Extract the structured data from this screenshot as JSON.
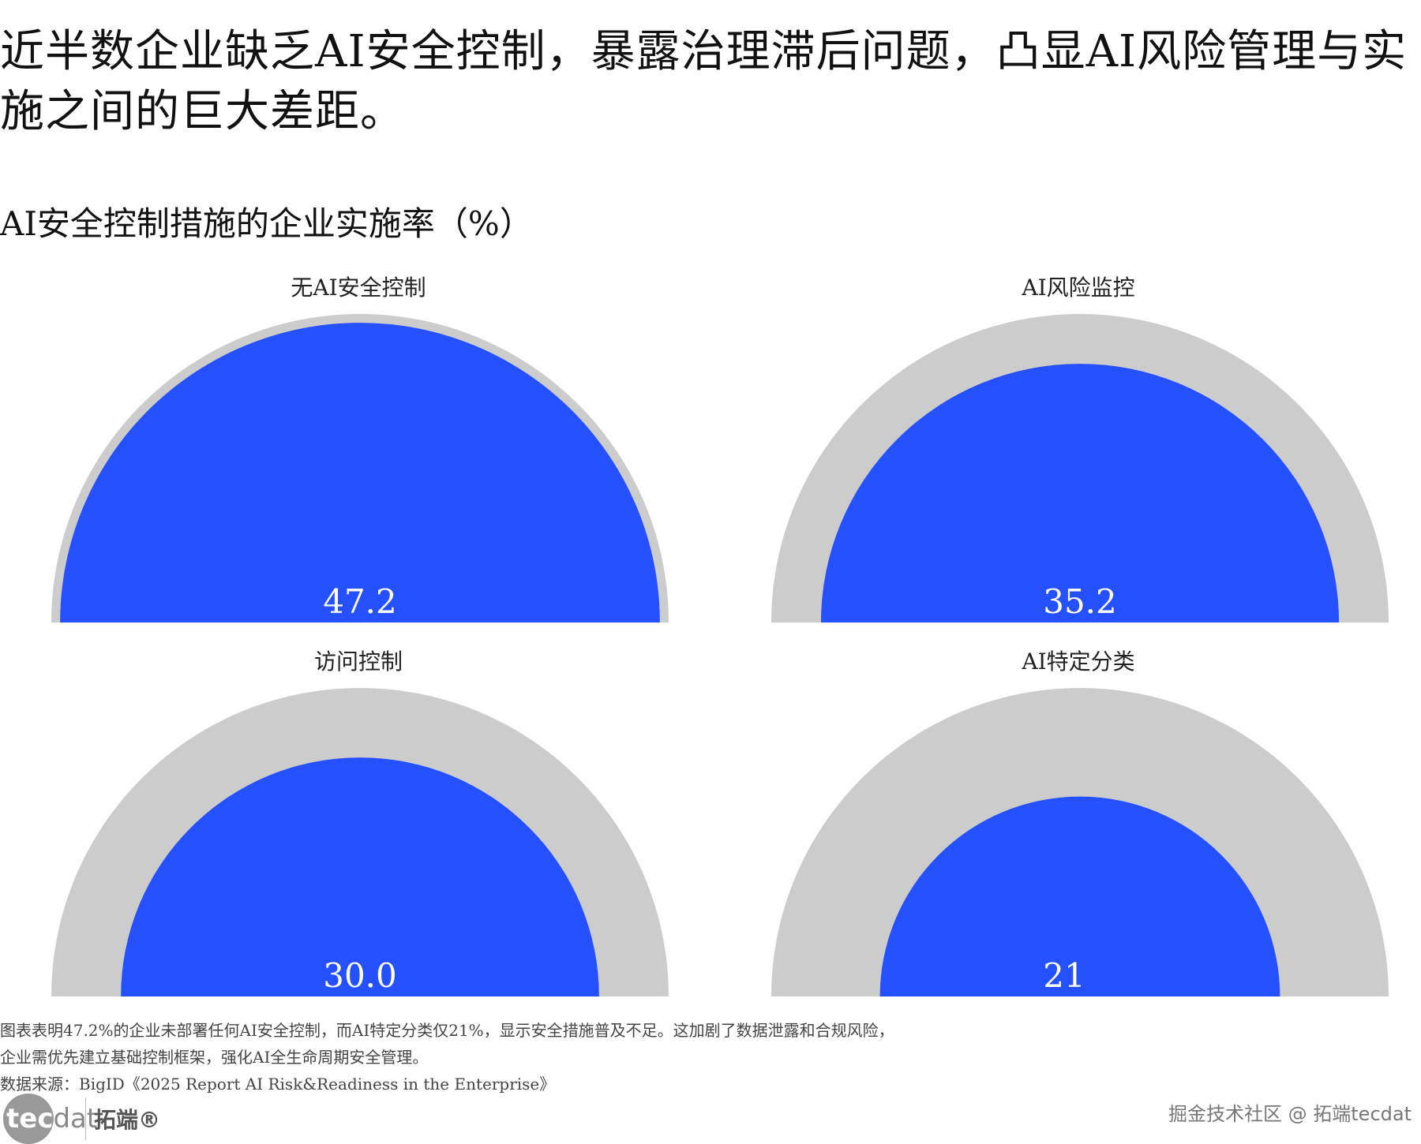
{
  "header": {
    "title": "近半数企业缺乏AI安全控制，暴露治理滞后问题，凸显AI风险管理与实施之间的巨大差距。"
  },
  "chart_data": {
    "type": "gauge",
    "title": "AI安全控制措施的企业实施率（%）",
    "max": 50,
    "colors": {
      "value": "#2450FF",
      "track": "#CCCCCC"
    },
    "items": [
      {
        "label": "无AI安全控制",
        "value": 47.2,
        "display": "47.2"
      },
      {
        "label": "AI风险监控",
        "value": 35.2,
        "display": "35.2"
      },
      {
        "label": "访问控制",
        "value": 30.0,
        "display": "30.0"
      },
      {
        "label": "AI特定分类",
        "value": 21,
        "display": "21"
      }
    ]
  },
  "footer": {
    "note_line1": "图表表明47.2%的企业未部署任何AI安全控制，而AI特定分类仅21%，显示安全措施普及不足。这加剧了数据泄露和合规风险，",
    "note_line2": "企业需优先建立基础控制框架，强化AI全生命周期安全管理。",
    "source": "数据来源：BigID《2025 Report AI Risk&Readiness in the Enterprise》",
    "logo_text": "tecdat",
    "logo_cn": "拓端®",
    "watermark": "掘金技术社区 @ 拓端tecdat"
  }
}
